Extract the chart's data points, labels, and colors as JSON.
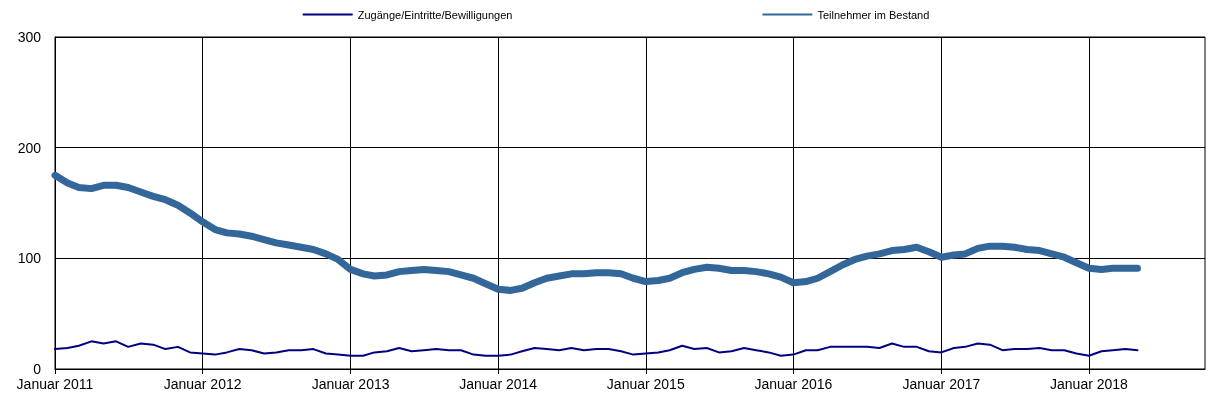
{
  "chart_data": {
    "type": "line",
    "xlim": [
      "2011-01",
      "2018-10-15"
    ],
    "xticks": [
      {
        "value": "2011-01",
        "label": "Januar 2011"
      },
      {
        "value": "2012-01",
        "label": "Januar 2012"
      },
      {
        "value": "2013-01",
        "label": "Januar 2013"
      },
      {
        "value": "2014-01",
        "label": "Januar 2014"
      },
      {
        "value": "2015-01",
        "label": "Januar 2015"
      },
      {
        "value": "2016-01",
        "label": "Januar 2016"
      },
      {
        "value": "2017-01",
        "label": "Januar 2017"
      },
      {
        "value": "2018-01",
        "label": "Januar 2018"
      }
    ],
    "x": [
      "2011-01",
      "2011-02",
      "2011-03",
      "2011-04",
      "2011-05",
      "2011-06",
      "2011-07",
      "2011-08",
      "2011-09",
      "2011-10",
      "2011-11",
      "2011-12",
      "2012-01",
      "2012-02",
      "2012-03",
      "2012-04",
      "2012-05",
      "2012-06",
      "2012-07",
      "2012-08",
      "2012-09",
      "2012-10",
      "2012-11",
      "2012-12",
      "2013-01",
      "2013-02",
      "2013-03",
      "2013-04",
      "2013-05",
      "2013-06",
      "2013-07",
      "2013-08",
      "2013-09",
      "2013-10",
      "2013-11",
      "2013-12",
      "2014-01",
      "2014-02",
      "2014-03",
      "2014-04",
      "2014-05",
      "2014-06",
      "2014-07",
      "2014-08",
      "2014-09",
      "2014-10",
      "2014-11",
      "2014-12",
      "2015-01",
      "2015-02",
      "2015-03",
      "2015-04",
      "2015-05",
      "2015-06",
      "2015-07",
      "2015-08",
      "2015-09",
      "2015-10",
      "2015-11",
      "2015-12",
      "2016-01",
      "2016-02",
      "2016-03",
      "2016-04",
      "2016-05",
      "2016-06",
      "2016-07",
      "2016-08",
      "2016-09",
      "2016-10",
      "2016-11",
      "2016-12",
      "2017-01",
      "2017-02",
      "2017-03",
      "2017-04",
      "2017-05",
      "2017-06",
      "2017-07",
      "2017-08",
      "2017-09",
      "2017-10",
      "2017-11",
      "2017-12",
      "2018-01",
      "2018-02",
      "2018-03",
      "2018-04",
      "2018-05"
    ],
    "ylim": [
      0,
      300
    ],
    "yticks": [
      0,
      100,
      200,
      300
    ],
    "grid": true,
    "legend": "top",
    "marker": "none",
    "line_style": "solid",
    "series": [
      {
        "name": "Zugänge/Eintritte/Bewilligungen",
        "color": "#000080",
        "values": [
          18,
          19,
          21,
          25,
          23,
          25,
          20,
          23,
          22,
          18,
          20,
          15,
          14,
          13,
          15,
          18,
          17,
          14,
          15,
          17,
          17,
          18,
          14,
          13,
          12,
          12,
          15,
          16,
          19,
          16,
          17,
          18,
          17,
          17,
          13,
          12,
          12,
          13,
          16,
          19,
          18,
          17,
          19,
          17,
          18,
          18,
          16,
          13,
          14,
          15,
          17,
          21,
          18,
          19,
          15,
          16,
          19,
          17,
          15,
          12,
          13,
          17,
          17,
          20,
          20,
          20,
          20,
          19,
          23,
          20,
          20,
          16,
          15,
          19,
          20,
          23,
          22,
          17,
          18,
          18,
          19,
          17,
          17,
          14,
          12,
          16,
          17,
          18,
          17
        ]
      },
      {
        "name": "Teilnehmer im Bestand",
        "color": "#336699",
        "values": [
          175,
          168,
          164,
          163,
          166,
          166,
          164,
          160,
          156,
          153,
          148,
          141,
          133,
          126,
          123,
          122,
          120,
          117,
          114,
          112,
          110,
          108,
          104,
          99,
          90,
          86,
          84,
          85,
          88,
          89,
          90,
          89,
          88,
          85,
          82,
          77,
          72,
          71,
          73,
          78,
          82,
          84,
          86,
          86,
          87,
          87,
          86,
          82,
          79,
          80,
          82,
          87,
          90,
          92,
          91,
          89,
          89,
          88,
          86,
          83,
          78,
          79,
          82,
          88,
          94,
          99,
          102,
          104,
          107,
          108,
          110,
          106,
          101,
          103,
          104,
          109,
          111,
          111,
          110,
          108,
          107,
          104,
          101,
          96,
          91,
          90,
          91,
          91,
          91
        ]
      }
    ]
  }
}
